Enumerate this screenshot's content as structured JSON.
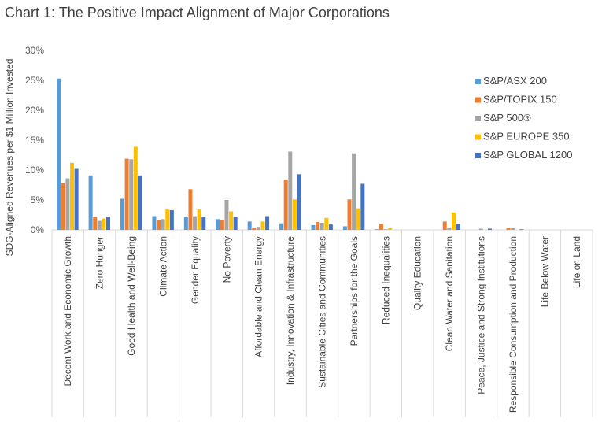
{
  "chart_data": {
    "type": "bar",
    "title": "Chart 1: The Positive Impact Alignment of Major Corporations",
    "ylabel": "SDG-Aligned Revenues per $1 Million Invested",
    "xlabel": "",
    "ylim": [
      0,
      30
    ],
    "yticks": [
      "0%",
      "5%",
      "10%",
      "15%",
      "20%",
      "25%",
      "30%"
    ],
    "grid": false,
    "legend_position": "right",
    "categories": [
      "Decent Work and Economic Growth",
      "Zero Hunger",
      "Good Health and Well-Being",
      "Climate Action",
      "Gender Equality",
      "No Poverty",
      "Affordable and Clean Energy",
      "Industry, Innovation & Infrastructure",
      "Sustainable Cities and Communities",
      "Partnerships for the Goals",
      "Reduced Inequalities",
      "Quality Education",
      "Clean Water and Sanitation",
      "Peace, Justice and Strong Institutions",
      "Responsible Consumption and Production",
      "Life Below Water",
      "Life on Land"
    ],
    "series": [
      {
        "name": "S&P/ASX 200",
        "color": "#5b9bd5",
        "values": [
          25.3,
          9.1,
          5.2,
          2.3,
          2.1,
          1.8,
          1.4,
          1.1,
          0.8,
          0.6,
          0.1,
          0.0,
          0.0,
          0.0,
          0.0,
          0.0,
          0.0
        ]
      },
      {
        "name": "S&P/TOPIX 150",
        "color": "#ed7d31",
        "values": [
          7.8,
          2.2,
          11.9,
          1.6,
          6.8,
          1.6,
          0.4,
          8.4,
          1.3,
          5.1,
          1.0,
          0.0,
          1.4,
          0.0,
          0.3,
          0.0,
          0.0
        ]
      },
      {
        "name": "S&P 500®",
        "color": "#a5a5a5",
        "values": [
          8.6,
          1.5,
          11.8,
          1.8,
          2.3,
          5.0,
          0.5,
          13.1,
          1.2,
          12.8,
          0.1,
          0.0,
          0.4,
          0.2,
          0.3,
          0.0,
          0.0
        ]
      },
      {
        "name": "S&P EUROPE 350",
        "color": "#ffc000",
        "values": [
          11.2,
          1.9,
          13.9,
          3.4,
          3.4,
          3.1,
          1.4,
          5.1,
          2.0,
          3.6,
          0.3,
          0.0,
          2.9,
          0.0,
          0.0,
          0.0,
          0.0
        ]
      },
      {
        "name": "S&P GLOBAL 1200",
        "color": "#4472c4",
        "values": [
          10.2,
          2.2,
          9.1,
          3.3,
          2.1,
          2.2,
          2.3,
          9.3,
          0.9,
          7.7,
          0.0,
          0.0,
          1.0,
          0.2,
          0.1,
          0.0,
          0.0
        ]
      }
    ]
  }
}
